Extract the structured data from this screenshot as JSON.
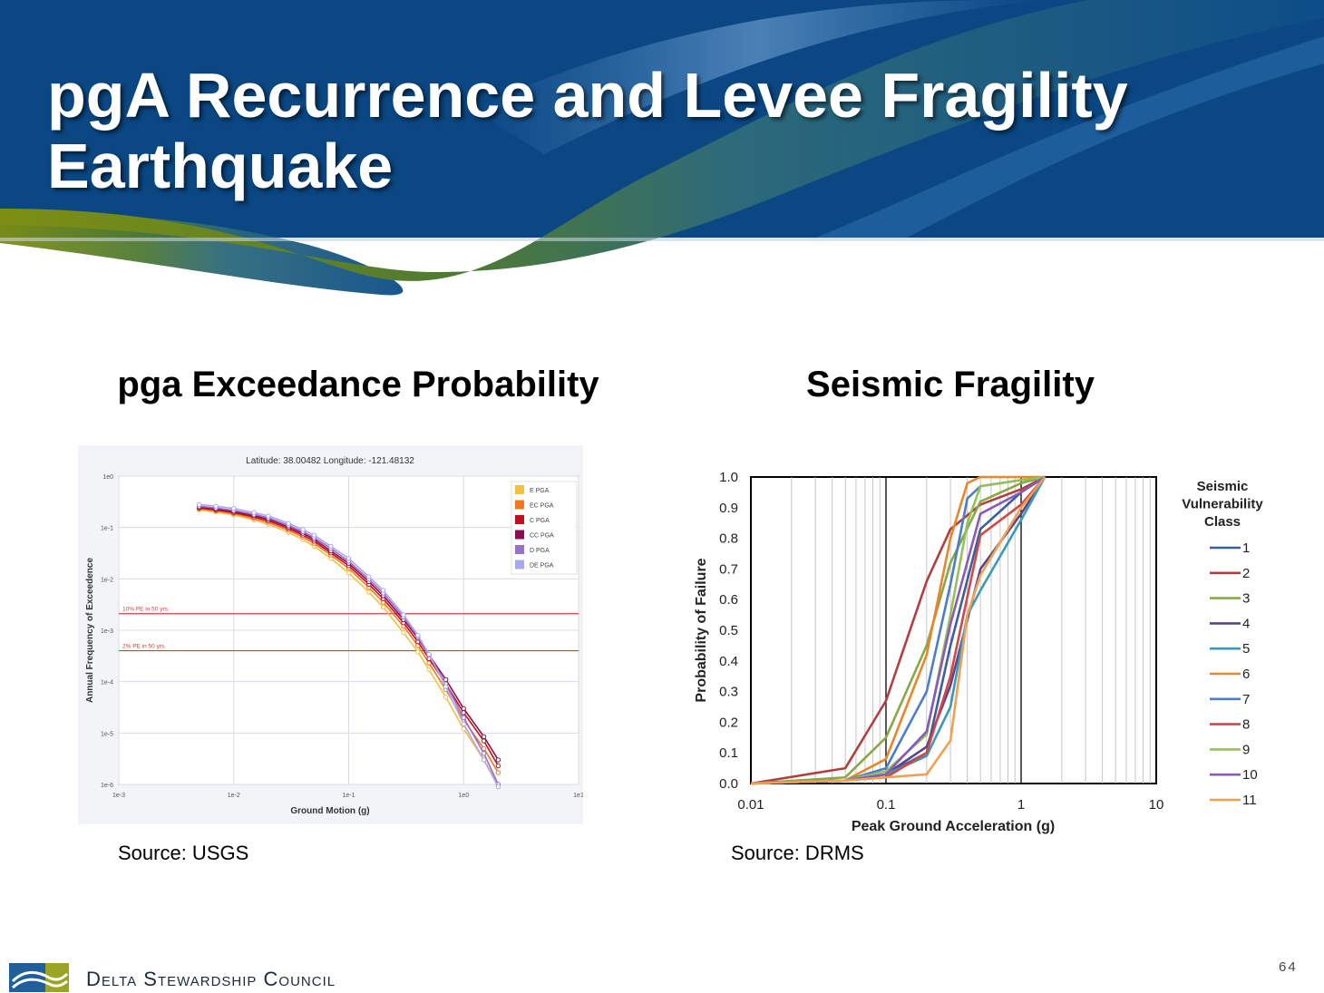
{
  "slide": {
    "title_line1": "pgA Recurrence and Levee Fragility",
    "title_line2": "Earthquake",
    "page_number": "64",
    "organization": "Delta Stewardship Council",
    "colors": {
      "banner_blue": "#0a4a85",
      "banner_green": "#8a9a1a",
      "accent_band": "#5a8fc4"
    }
  },
  "left_panel": {
    "heading": "pga Exceedance Probability",
    "source": "Source: USGS"
  },
  "right_panel": {
    "heading": "Seismic Fragility",
    "source": "Source: DRMS"
  },
  "chart_data": [
    {
      "type": "line",
      "title": "Latitude: 38.00482   Longitude: -121.48132",
      "xlabel": "Ground Motion (g)",
      "ylabel": "Annual Frequency of Exceedence",
      "x_scale": "log",
      "y_scale": "log",
      "x_ticks": [
        "1e-3",
        "1e-2",
        "1e-1",
        "1e0",
        "1e1"
      ],
      "y_ticks": [
        "1e0",
        "1e-1",
        "1e-2",
        "1e-3",
        "1e-4",
        "1e-5",
        "1e-6"
      ],
      "xlim": [
        0.001,
        10
      ],
      "ylim": [
        1e-06,
        1
      ],
      "grid": true,
      "legend_position": "top-right",
      "reference_lines": [
        {
          "label": "10% PE in 50 yrs.",
          "y": 0.0021,
          "color": "#d04040"
        },
        {
          "label": "2% PE in 50 yrs.",
          "y": 0.0004,
          "color": "#d04040"
        }
      ],
      "x": [
        0.005,
        0.007,
        0.01,
        0.015,
        0.02,
        0.03,
        0.04,
        0.05,
        0.07,
        0.1,
        0.15,
        0.2,
        0.3,
        0.4,
        0.5,
        0.7,
        1.0,
        1.5,
        2.0
      ],
      "series": [
        {
          "name": "E PGA",
          "color": "#f5c040",
          "values": [
            0.22,
            0.2,
            0.175,
            0.14,
            0.115,
            0.08,
            0.058,
            0.043,
            0.025,
            0.013,
            0.0055,
            0.0028,
            0.0009,
            0.00038,
            0.00017,
            5e-05,
            1.2e-05,
            3e-06,
            1e-06
          ]
        },
        {
          "name": "EC PGA",
          "color": "#f07820",
          "values": [
            0.23,
            0.21,
            0.185,
            0.15,
            0.125,
            0.088,
            0.065,
            0.049,
            0.029,
            0.016,
            0.0068,
            0.0035,
            0.0012,
            0.0005,
            0.00023,
            7e-05,
            1.8e-05,
            5e-06,
            1.7e-06
          ]
        },
        {
          "name": "C PGA",
          "color": "#c01020",
          "values": [
            0.24,
            0.22,
            0.195,
            0.16,
            0.135,
            0.095,
            0.071,
            0.054,
            0.032,
            0.018,
            0.0078,
            0.0041,
            0.0014,
            0.0006,
            0.00028,
            9e-05,
            2.5e-05,
            7e-06,
            2.3e-06
          ]
        },
        {
          "name": "CC PGA",
          "color": "#8a1050",
          "values": [
            0.25,
            0.23,
            0.205,
            0.17,
            0.145,
            0.102,
            0.077,
            0.059,
            0.035,
            0.02,
            0.0088,
            0.0047,
            0.0016,
            0.0007,
            0.00033,
            0.00011,
            3e-05,
            8.5e-06,
            3e-06
          ]
        },
        {
          "name": "D PGA",
          "color": "#9a70c8",
          "values": [
            0.26,
            0.24,
            0.215,
            0.18,
            0.155,
            0.11,
            0.083,
            0.064,
            0.039,
            0.022,
            0.0098,
            0.0053,
            0.0018,
            0.00075,
            0.00033,
            9e-05,
            2e-05,
            4e-06,
            1e-06
          ]
        },
        {
          "name": "DE PGA",
          "color": "#a8a8ec",
          "values": [
            0.28,
            0.26,
            0.235,
            0.195,
            0.168,
            0.12,
            0.091,
            0.071,
            0.043,
            0.025,
            0.011,
            0.006,
            0.002,
            0.0008,
            0.00034,
            8e-05,
            1.5e-05,
            3e-06,
            9e-07
          ]
        }
      ]
    },
    {
      "type": "line",
      "title": "",
      "xlabel": "Peak Ground Acceleration (g)",
      "ylabel": "Probability of Failure",
      "x_scale": "log",
      "xlim": [
        0.01,
        10
      ],
      "ylim": [
        0,
        1
      ],
      "x_ticks": [
        "0.01",
        "0.1",
        "1",
        "10"
      ],
      "y_ticks": [
        "0.0",
        "0.1",
        "0.2",
        "0.3",
        "0.4",
        "0.5",
        "0.6",
        "0.7",
        "0.8",
        "0.9",
        "1.0"
      ],
      "grid": true,
      "legend_title": "Seismic Vulnerability Class",
      "legend_position": "right",
      "series": [
        {
          "name": "1",
          "color": "#3a5f9a",
          "x": [
            0.01,
            0.05,
            0.1,
            0.2,
            0.3,
            0.5,
            1.0,
            1.5
          ],
          "values": [
            0,
            0.01,
            0.03,
            0.1,
            0.45,
            0.83,
            0.95,
            1.0
          ]
        },
        {
          "name": "2",
          "color": "#b04040",
          "x": [
            0.01,
            0.05,
            0.1,
            0.2,
            0.3,
            0.5,
            1.0,
            1.5
          ],
          "values": [
            0,
            0.05,
            0.27,
            0.66,
            0.83,
            0.91,
            0.96,
            1.0
          ]
        },
        {
          "name": "3",
          "color": "#88a848",
          "x": [
            0.01,
            0.05,
            0.1,
            0.2,
            0.3,
            0.5,
            1.0,
            1.5
          ],
          "values": [
            0,
            0.02,
            0.15,
            0.45,
            0.72,
            0.92,
            0.98,
            1.0
          ]
        },
        {
          "name": "4",
          "color": "#5a4488",
          "x": [
            0.01,
            0.05,
            0.1,
            0.2,
            0.3,
            0.5,
            1.0,
            1.5
          ],
          "values": [
            0,
            0.01,
            0.03,
            0.12,
            0.32,
            0.7,
            0.88,
            1.0
          ]
        },
        {
          "name": "5",
          "color": "#3a9ab8",
          "x": [
            0.01,
            0.05,
            0.1,
            0.2,
            0.3,
            0.4,
            0.5,
            1.0,
            1.5
          ],
          "values": [
            0,
            0.01,
            0.03,
            0.09,
            0.25,
            0.55,
            0.63,
            0.86,
            1.0
          ]
        },
        {
          "name": "6",
          "color": "#e8862a",
          "x": [
            0.01,
            0.05,
            0.1,
            0.2,
            0.3,
            0.4,
            0.5,
            1.0,
            1.5
          ],
          "values": [
            0,
            0.01,
            0.08,
            0.42,
            0.8,
            0.98,
            1.0,
            1.0,
            1.0
          ]
        },
        {
          "name": "7",
          "color": "#4a7ec8",
          "x": [
            0.01,
            0.05,
            0.1,
            0.2,
            0.3,
            0.4,
            0.5,
            1.0,
            1.5
          ],
          "values": [
            0,
            0.01,
            0.05,
            0.3,
            0.65,
            0.93,
            0.97,
            0.99,
            1.0
          ]
        },
        {
          "name": "8",
          "color": "#d04848",
          "x": [
            0.01,
            0.05,
            0.1,
            0.2,
            0.3,
            0.5,
            1.0,
            1.5
          ],
          "values": [
            0,
            0.01,
            0.02,
            0.1,
            0.35,
            0.81,
            0.91,
            1.0
          ]
        },
        {
          "name": "9",
          "color": "#98c058",
          "x": [
            0.01,
            0.05,
            0.1,
            0.2,
            0.3,
            0.4,
            0.5,
            1.0,
            1.5
          ],
          "values": [
            0,
            0.01,
            0.04,
            0.16,
            0.55,
            0.85,
            0.97,
            0.99,
            1.0
          ]
        },
        {
          "name": "10",
          "color": "#8a5ab8",
          "x": [
            0.01,
            0.05,
            0.1,
            0.2,
            0.3,
            0.5,
            1.0,
            1.5
          ],
          "values": [
            0,
            0.01,
            0.03,
            0.17,
            0.52,
            0.88,
            0.95,
            1.0
          ]
        },
        {
          "name": "11",
          "color": "#f0a050",
          "x": [
            0.01,
            0.05,
            0.1,
            0.2,
            0.3,
            0.4,
            0.5,
            1.0,
            1.5
          ],
          "values": [
            0,
            0.01,
            0.02,
            0.03,
            0.14,
            0.55,
            0.68,
            0.9,
            1.0
          ]
        }
      ]
    }
  ]
}
